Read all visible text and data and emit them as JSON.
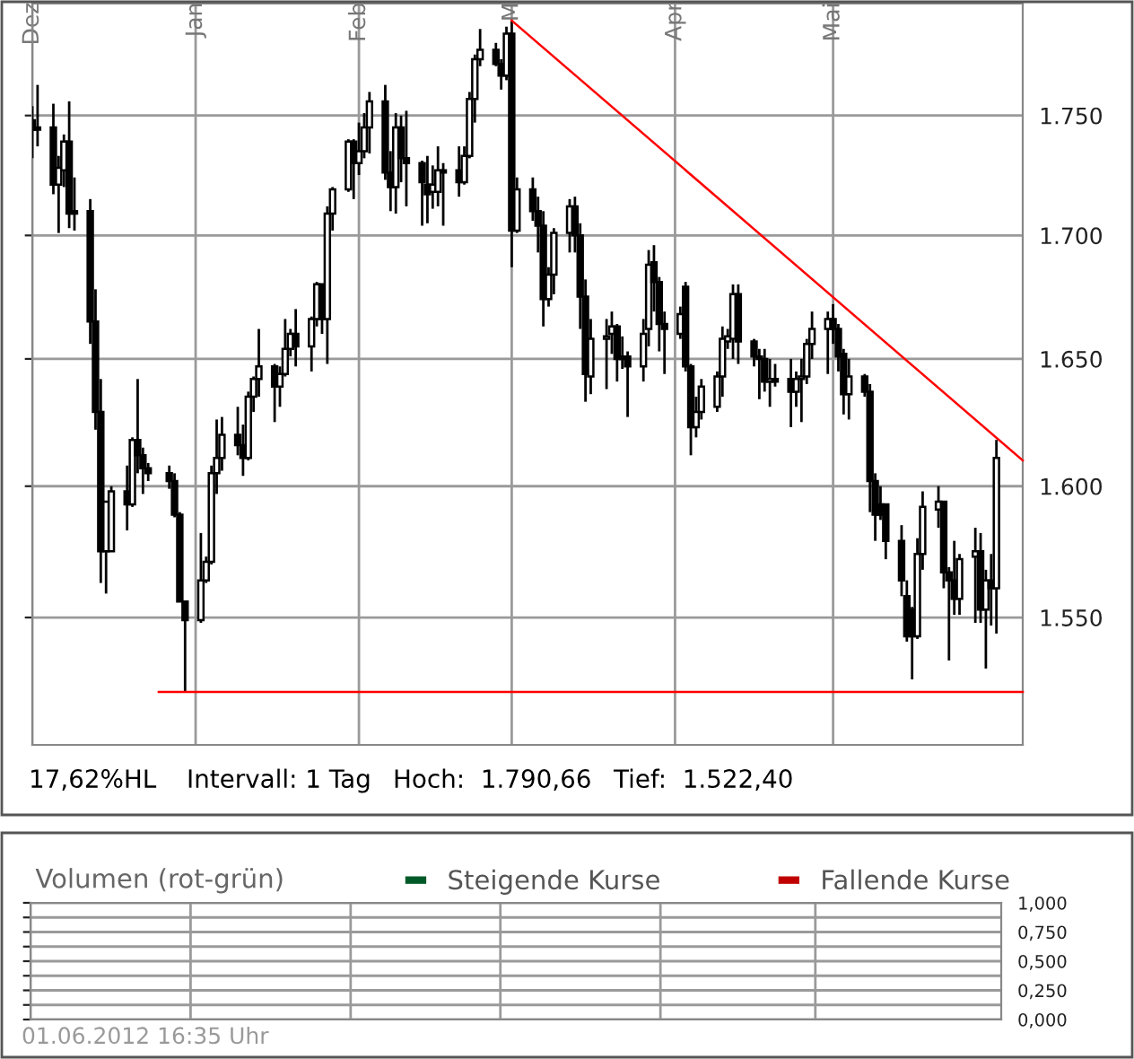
{
  "chart_data": [
    {
      "type": "candlestick",
      "log": true,
      "grid": true,
      "color": "#000000",
      "x": [
        "2011-12-01",
        "2011-12-02",
        "2011-12-05",
        "2011-12-06",
        "2011-12-07",
        "2011-12-08",
        "2011-12-09",
        "2011-12-12",
        "2011-12-13",
        "2011-12-14",
        "2011-12-15",
        "2011-12-16",
        "2011-12-19",
        "2011-12-20",
        "2011-12-21",
        "2011-12-22",
        "2011-12-23",
        "2011-12-27",
        "2011-12-28",
        "2011-12-29",
        "2011-12-30",
        "2012-01-02",
        "2012-01-03",
        "2012-01-04",
        "2012-01-05",
        "2012-01-06",
        "2012-01-09",
        "2012-01-10",
        "2012-01-11",
        "2012-01-12",
        "2012-01-13",
        "2012-01-16",
        "2012-01-17",
        "2012-01-18",
        "2012-01-19",
        "2012-01-20",
        "2012-01-23",
        "2012-01-24",
        "2012-01-25",
        "2012-01-26",
        "2012-01-27",
        "2012-01-30",
        "2012-01-31",
        "2012-02-01",
        "2012-02-02",
        "2012-02-03",
        "2012-02-06",
        "2012-02-07",
        "2012-02-08",
        "2012-02-09",
        "2012-02-10",
        "2012-02-13",
        "2012-02-14",
        "2012-02-15",
        "2012-02-16",
        "2012-02-17",
        "2012-02-20",
        "2012-02-21",
        "2012-02-22",
        "2012-02-23",
        "2012-02-24",
        "2012-02-27",
        "2012-02-28",
        "2012-02-29",
        "2012-03-01",
        "2012-03-02",
        "2012-03-05",
        "2012-03-06",
        "2012-03-07",
        "2012-03-08",
        "2012-03-09",
        "2012-03-12",
        "2012-03-13",
        "2012-03-14",
        "2012-03-15",
        "2012-03-16",
        "2012-03-19",
        "2012-03-20",
        "2012-03-21",
        "2012-03-22",
        "2012-03-23",
        "2012-03-26",
        "2012-03-27",
        "2012-03-28",
        "2012-03-29",
        "2012-03-30",
        "2012-04-02",
        "2012-04-03",
        "2012-04-04",
        "2012-04-05",
        "2012-04-06",
        "2012-04-09",
        "2012-04-10",
        "2012-04-11",
        "2012-04-12",
        "2012-04-13",
        "2012-04-16",
        "2012-04-17",
        "2012-04-18",
        "2012-04-19",
        "2012-04-20",
        "2012-04-23",
        "2012-04-24",
        "2012-04-25",
        "2012-04-26",
        "2012-04-27",
        "2012-04-30",
        "2012-05-01",
        "2012-05-02",
        "2012-05-03",
        "2012-05-04",
        "2012-05-07",
        "2012-05-08",
        "2012-05-09",
        "2012-05-10",
        "2012-05-11",
        "2012-05-14",
        "2012-05-15",
        "2012-05-16",
        "2012-05-17",
        "2012-05-18",
        "2012-05-21",
        "2012-05-22",
        "2012-05-23",
        "2012-05-24",
        "2012-05-25",
        "2012-05-28",
        "2012-05-29",
        "2012-05-30",
        "2012-05-31",
        "2012-06-01"
      ],
      "ohlc": [
        [
          1748,
          1754,
          1732,
          1744
        ],
        [
          1745,
          1763,
          1737,
          1744
        ],
        [
          1745,
          1755,
          1717,
          1721
        ],
        [
          1721,
          1733,
          1701,
          1728
        ],
        [
          1727,
          1742,
          1720,
          1739
        ],
        [
          1739,
          1756,
          1703,
          1709
        ],
        [
          1710,
          1724,
          1702,
          1709
        ],
        [
          1710,
          1715,
          1656,
          1665
        ],
        [
          1665,
          1678,
          1622,
          1629
        ],
        [
          1629,
          1642,
          1563,
          1575
        ],
        [
          1575,
          1594,
          1559,
          1594
        ],
        [
          1575,
          1600,
          1575,
          1598
        ],
        [
          1598,
          1608,
          1583,
          1593
        ],
        [
          1593,
          1619,
          1592,
          1618
        ],
        [
          1618,
          1642,
          1605,
          1612
        ],
        [
          1612,
          1615,
          1597,
          1607
        ],
        [
          1607,
          1609,
          1602,
          1605
        ],
        [
          1605,
          1608,
          1599,
          1602
        ],
        [
          1602,
          1605,
          1588,
          1589
        ],
        [
          1589,
          1590,
          1556,
          1556
        ],
        [
          1556,
          1556,
          1522.4,
          1549
        ],
        [
          1549,
          1582,
          1548,
          1564
        ],
        [
          1564,
          1573,
          1563,
          1571
        ],
        [
          1571,
          1608,
          1570,
          1605
        ],
        [
          1605,
          1626,
          1597,
          1611
        ],
        [
          1611,
          1627,
          1606,
          1620
        ],
        [
          1620,
          1631,
          1612,
          1616
        ],
        [
          1616,
          1624,
          1604,
          1611
        ],
        [
          1611,
          1637,
          1610,
          1635
        ],
        [
          1635,
          1643,
          1629,
          1642
        ],
        [
          1642,
          1662,
          1635,
          1647
        ],
        [
          1647,
          1648,
          1625,
          1639
        ],
        [
          1639,
          1647,
          1631,
          1644
        ],
        [
          1644,
          1666,
          1643,
          1654
        ],
        [
          1654,
          1662,
          1651,
          1660
        ],
        [
          1660,
          1670,
          1647,
          1655
        ],
        [
          1655,
          1667,
          1645,
          1666
        ],
        [
          1666,
          1681,
          1663,
          1680
        ],
        [
          1680,
          1680,
          1660,
          1666
        ],
        [
          1666,
          1712,
          1648,
          1709
        ],
        [
          1709,
          1720,
          1702,
          1719
        ],
        [
          1719,
          1740,
          1718,
          1739
        ],
        [
          1739,
          1740,
          1715,
          1730
        ],
        [
          1730,
          1747,
          1725,
          1735
        ],
        [
          1735,
          1751,
          1732,
          1745
        ],
        [
          1745,
          1760,
          1734,
          1756
        ],
        [
          1756,
          1763,
          1723,
          1726
        ],
        [
          1726,
          1735,
          1710,
          1720
        ],
        [
          1720,
          1751,
          1709,
          1745
        ],
        [
          1745,
          1750,
          1722,
          1732
        ],
        [
          1732,
          1752,
          1712,
          1730
        ],
        [
          1730,
          1731,
          1704,
          1722
        ],
        [
          1721,
          1733,
          1705,
          1717
        ],
        [
          1718,
          1729,
          1711,
          1721
        ],
        [
          1718,
          1737,
          1712,
          1727
        ],
        [
          1727,
          1730,
          1704,
          1726
        ],
        [
          1727,
          1737,
          1716,
          1722
        ],
        [
          1722,
          1737,
          1721,
          1733
        ],
        [
          1733,
          1760,
          1732,
          1757
        ],
        [
          1757,
          1776,
          1747,
          1774
        ],
        [
          1774,
          1787,
          1771,
          1778
        ],
        [
          1778,
          1781,
          1771,
          1772
        ],
        [
          1772,
          1774,
          1761,
          1767
        ],
        [
          1767,
          1788,
          1765,
          1785
        ],
        [
          1785,
          1790.66,
          1687,
          1702
        ],
        [
          1702,
          1724,
          1701,
          1719
        ],
        [
          1719,
          1724,
          1706,
          1710
        ],
        [
          1710,
          1716,
          1693,
          1704
        ],
        [
          1704,
          1710,
          1663,
          1674
        ],
        [
          1674,
          1687,
          1671,
          1684
        ],
        [
          1684,
          1703,
          1676,
          1701
        ],
        [
          1701,
          1715,
          1693,
          1712
        ],
        [
          1712,
          1716,
          1693,
          1700
        ],
        [
          1700,
          1705,
          1662,
          1675
        ],
        [
          1675,
          1682,
          1633,
          1644
        ],
        [
          1643,
          1666,
          1636,
          1658
        ],
        [
          1658,
          1666,
          1638,
          1659
        ],
        [
          1660,
          1669,
          1652,
          1663
        ],
        [
          1663,
          1664,
          1641,
          1650
        ],
        [
          1651,
          1659,
          1646,
          1650
        ],
        [
          1651,
          1653,
          1627,
          1647
        ],
        [
          1647,
          1666,
          1641,
          1660
        ],
        [
          1662,
          1694,
          1655,
          1688
        ],
        [
          1689,
          1696,
          1669,
          1681
        ],
        [
          1681,
          1683,
          1653,
          1664
        ],
        [
          1664,
          1669,
          1644,
          1662
        ],
        [
          1660,
          1671,
          1658,
          1668
        ],
        [
          1679,
          1681,
          1645,
          1647
        ],
        [
          1647,
          1648,
          1612,
          1623
        ],
        [
          1623,
          1635,
          1619,
          1629
        ],
        [
          1629,
          1642,
          1626,
          1639
        ],
        [
          1631,
          1645,
          1629,
          1643
        ],
        [
          1643,
          1663,
          1635,
          1658
        ],
        [
          1657,
          1662,
          1654,
          1659
        ],
        [
          1658,
          1680,
          1650,
          1676
        ],
        [
          1676,
          1680,
          1648,
          1657
        ],
        [
          1657,
          1658,
          1647,
          1651
        ],
        [
          1651,
          1654,
          1634,
          1650
        ],
        [
          1650,
          1654,
          1637,
          1641
        ],
        [
          1641,
          1650,
          1631,
          1642
        ],
        [
          1642,
          1648,
          1639,
          1641
        ],
        [
          1642,
          1650,
          1623,
          1637
        ],
        [
          1637,
          1645,
          1631,
          1642
        ],
        [
          1642,
          1650,
          1625,
          1643
        ],
        [
          1643,
          1658,
          1640,
          1656
        ],
        [
          1656,
          1669,
          1650,
          1662
        ],
        [
          1662,
          1669,
          1644,
          1666
        ],
        [
          1666,
          1672,
          1656,
          1662
        ],
        [
          1662,
          1664,
          1645,
          1651
        ],
        [
          1652,
          1654,
          1628,
          1636
        ],
        [
          1636,
          1650,
          1626,
          1643
        ],
        [
          1643,
          1644,
          1635,
          1637
        ],
        [
          1637,
          1640,
          1590,
          1602
        ],
        [
          1602,
          1605,
          1579,
          1589
        ],
        [
          1593,
          1600,
          1587,
          1589
        ],
        [
          1593,
          1593,
          1572,
          1579
        ],
        [
          1579,
          1585,
          1558,
          1564
        ],
        [
          1558,
          1564,
          1541,
          1543
        ],
        [
          1553,
          1554,
          1527,
          1543
        ],
        [
          1543,
          1580,
          1542,
          1574
        ],
        [
          1574,
          1598,
          1568,
          1592
        ],
        [
          1591,
          1600,
          1584,
          1594
        ],
        [
          1594,
          1594,
          1561,
          1567
        ],
        [
          1567,
          1569,
          1534,
          1564
        ],
        [
          1564,
          1579,
          1551,
          1557
        ],
        [
          1557,
          1574,
          1551,
          1572
        ],
        [
          1573,
          1584,
          1548,
          1575
        ],
        [
          1575,
          1582,
          1548,
          1553
        ],
        [
          1553,
          1568,
          1531,
          1564
        ],
        [
          1564,
          1574,
          1547,
          1561
        ],
        [
          1561,
          1618,
          1544,
          1611
        ]
      ],
      "series": [
        {
          "type": "line",
          "color": "#ff0000",
          "x": [
            "2012-03-01",
            "2012-06-06"
          ],
          "values": [
            1790.66,
            1610
          ]
        },
        {
          "type": "line",
          "color": "#ff0000",
          "x": [
            "2011-12-25",
            "2012-06-06"
          ],
          "values": [
            1522.4,
            1522.4
          ]
        }
      ],
      "xlim": [
        "2011-12-01",
        "2012-06-06"
      ],
      "xticks": [
        {
          "value": "2011-12-01",
          "label": "Dez"
        },
        {
          "value": "2012-01-01",
          "label": "Jan"
        },
        {
          "value": "2012-02-01",
          "label": "Feb"
        },
        {
          "value": "2012-03-01",
          "label": "M"
        },
        {
          "value": "2012-04-01",
          "label": "Apr"
        },
        {
          "value": "2012-05-01",
          "label": "Mai"
        }
      ],
      "ylim": [
        1503,
        1798
      ],
      "yticks": [
        {
          "value": 1550,
          "label": "1.550"
        },
        {
          "value": 1600,
          "label": "1.600"
        },
        {
          "value": 1650,
          "label": "1.650"
        },
        {
          "value": 1700,
          "label": "1.700"
        },
        {
          "value": 1750,
          "label": "1.750"
        }
      ],
      "annotations": [
        "17,62%HL",
        "Intervall: 1 Tag",
        "Hoch:  1.790,66",
        "Tief:  1.522,40"
      ]
    },
    {
      "type": "bar",
      "title": "Volumen (rot-grün)",
      "grid": true,
      "legend": "top right",
      "tick_labels": "y",
      "series": [
        {
          "name": "Steigende Kurse",
          "color": "#005a28"
        },
        {
          "name": "Fallende Kurse",
          "color": "#c00000"
        }
      ],
      "ylim": [
        0,
        1
      ],
      "yticks": [
        {
          "value": 0,
          "label": "0,000"
        },
        {
          "value": 0.125,
          "label": null
        },
        {
          "value": 0.25,
          "label": "0,250"
        },
        {
          "value": 0.375,
          "label": null
        },
        {
          "value": 0.5,
          "label": "0,500"
        },
        {
          "value": 0.625,
          "label": null
        },
        {
          "value": 0.75,
          "label": "0,750"
        },
        {
          "value": 0.875,
          "label": null
        },
        {
          "value": 1,
          "label": "1,000"
        }
      ],
      "annotations": [
        "01.06.2012 16:35 Uhr"
      ]
    }
  ]
}
